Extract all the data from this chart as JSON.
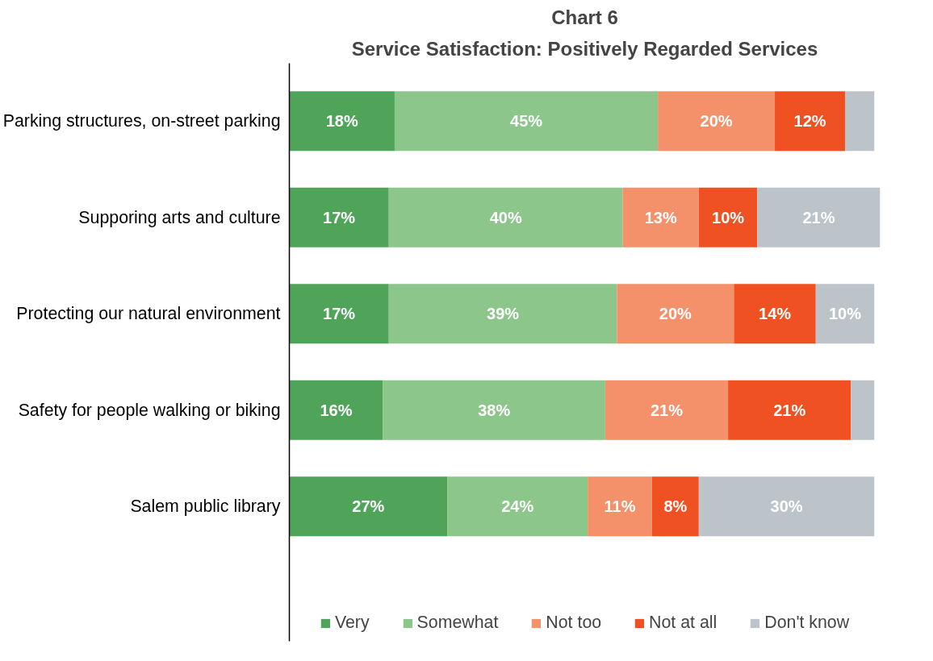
{
  "chart_data": {
    "type": "bar",
    "orientation": "horizontal",
    "stacked": true,
    "title": "Chart 6",
    "subtitle": "Service Satisfaction: Positively Regarded Services",
    "categories": [
      "Parking structures, on-street parking",
      "Supporing arts and culture",
      "Protecting our natural environment",
      "Safety for people walking or biking",
      "Salem public library"
    ],
    "series": [
      {
        "name": "Very",
        "color": "#4fa45a",
        "values": [
          18,
          17,
          17,
          16,
          27
        ],
        "value_labels": [
          "18%",
          "17%",
          "17%",
          "16%",
          "27%"
        ]
      },
      {
        "name": "Somewhat",
        "color": "#8cc68a",
        "values": [
          45,
          40,
          39,
          38,
          24
        ],
        "value_labels": [
          "45%",
          "40%",
          "39%",
          "38%",
          "24%"
        ]
      },
      {
        "name": "Not too",
        "color": "#f4916b",
        "values": [
          20,
          13,
          20,
          21,
          11
        ],
        "value_labels": [
          "20%",
          "13%",
          "20%",
          "21%",
          "11%"
        ]
      },
      {
        "name": "Not at all",
        "color": "#ef5122",
        "values": [
          12,
          10,
          14,
          21,
          8
        ],
        "value_labels": [
          "12%",
          "10%",
          "14%",
          "21%",
          "8%"
        ]
      },
      {
        "name": "Don't know",
        "color": "#bcc4ca",
        "values": [
          5,
          21,
          10,
          4,
          30
        ],
        "value_labels": [
          null,
          "21%",
          "10%",
          null,
          "30%"
        ]
      }
    ],
    "xlim": [
      0,
      101
    ],
    "tick_labels": "y",
    "legend": "bottom",
    "grid": false
  }
}
